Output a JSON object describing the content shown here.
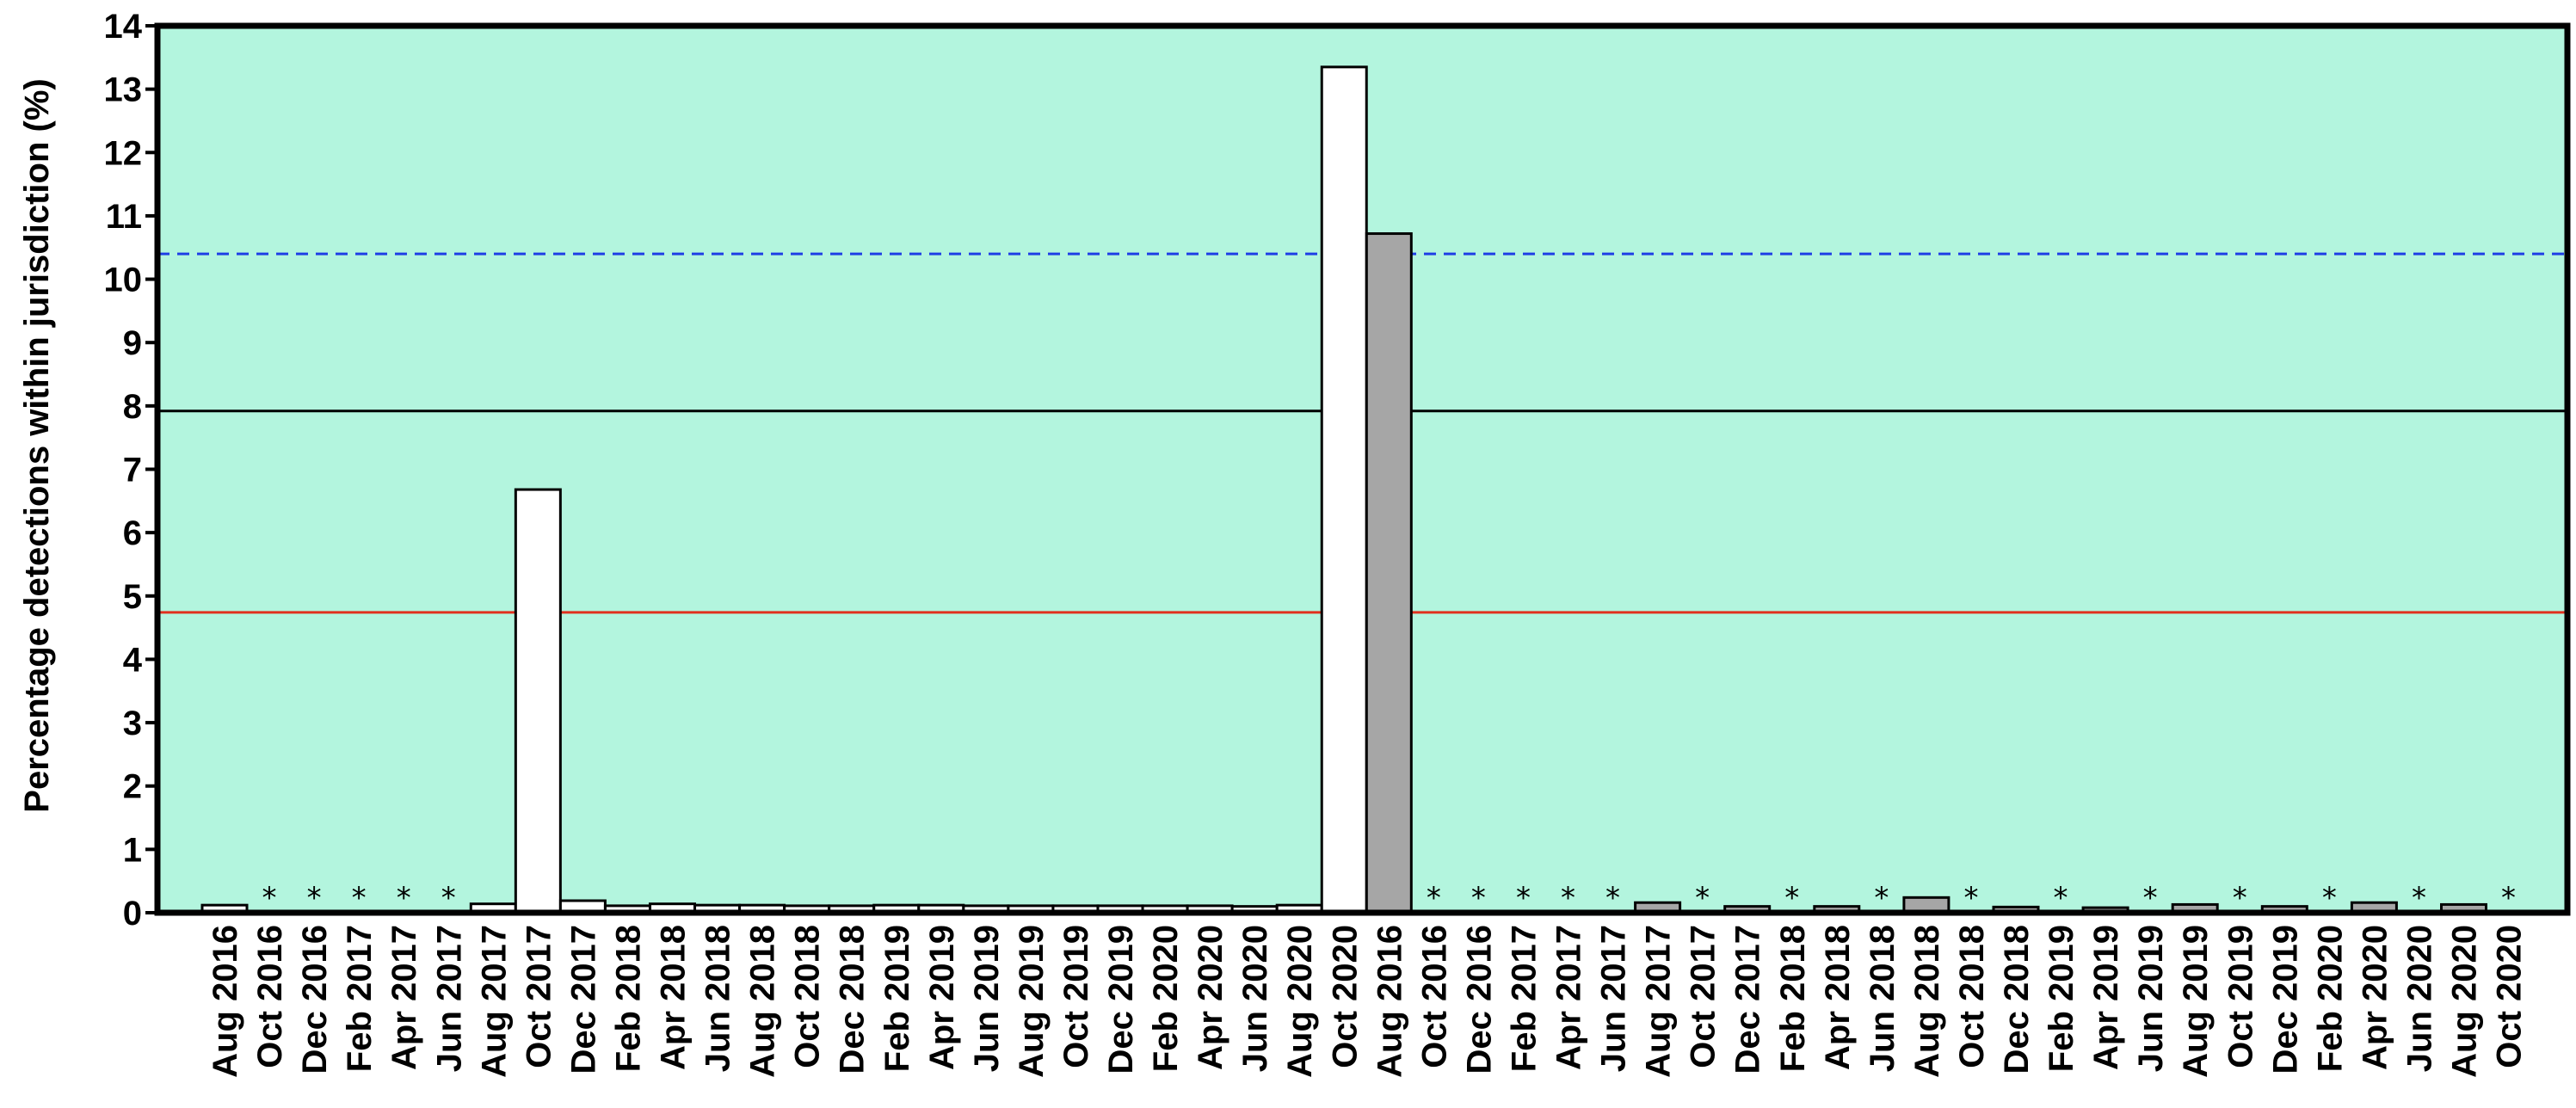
{
  "chart_data": {
    "type": "bar",
    "title": "",
    "xlabel": "",
    "ylabel": "Percentage detections  within jurisdiction (%)",
    "ylim": [
      0,
      14
    ],
    "yticks": [
      "0",
      "1",
      "2",
      "3",
      "4",
      "5",
      "6",
      "7",
      "8",
      "9",
      "10",
      "11",
      "12",
      "13",
      "14"
    ],
    "grid": false,
    "plot_background": "#b3f5de",
    "missing_marker": "*",
    "series": [
      {
        "color": "#ffffff",
        "bars": [
          {
            "label": "Aug 2016",
            "value": 0.12
          },
          {
            "label": "Oct 2016",
            "value": null
          },
          {
            "label": "Dec 2016",
            "value": null
          },
          {
            "label": "Feb 2017",
            "value": null
          },
          {
            "label": "Apr 2017",
            "value": null
          },
          {
            "label": "Jun 2017",
            "value": null
          },
          {
            "label": "Aug 2017",
            "value": 0.14
          },
          {
            "label": "Oct 2017",
            "value": 6.68
          },
          {
            "label": "Dec 2017",
            "value": 0.19
          },
          {
            "label": "Feb 2018",
            "value": 0.11
          },
          {
            "label": "Apr 2018",
            "value": 0.14
          },
          {
            "label": "Jun 2018",
            "value": 0.12
          },
          {
            "label": "Aug 2018",
            "value": 0.12
          },
          {
            "label": "Oct 2018",
            "value": 0.11
          },
          {
            "label": "Dec 2018",
            "value": 0.11
          },
          {
            "label": "Feb 2019",
            "value": 0.12
          },
          {
            "label": "Apr 2019",
            "value": 0.12
          },
          {
            "label": "Jun 2019",
            "value": 0.11
          },
          {
            "label": "Aug 2019",
            "value": 0.11
          },
          {
            "label": "Oct 2019",
            "value": 0.11
          },
          {
            "label": "Dec 2019",
            "value": 0.11
          },
          {
            "label": "Feb 2020",
            "value": 0.11
          },
          {
            "label": "Apr 2020",
            "value": 0.11
          },
          {
            "label": "Jun 2020",
            "value": 0.1
          },
          {
            "label": "Aug 2020",
            "value": 0.12
          },
          {
            "label": "Oct 2020",
            "value": 13.35
          }
        ]
      },
      {
        "color": "#a6a6a6",
        "bars": [
          {
            "label": "Aug 2016",
            "value": 10.72
          },
          {
            "label": "Oct 2016",
            "value": null
          },
          {
            "label": "Dec 2016",
            "value": null
          },
          {
            "label": "Feb 2017",
            "value": null
          },
          {
            "label": "Apr 2017",
            "value": null
          },
          {
            "label": "Jun 2017",
            "value": null
          },
          {
            "label": "Aug 2017",
            "value": 0.16
          },
          {
            "label": "Oct 2017",
            "value": null
          },
          {
            "label": "Dec 2017",
            "value": 0.1
          },
          {
            "label": "Feb 2018",
            "value": null
          },
          {
            "label": "Apr 2018",
            "value": 0.1
          },
          {
            "label": "Jun 2018",
            "value": null
          },
          {
            "label": "Aug 2018",
            "value": 0.24
          },
          {
            "label": "Oct 2018",
            "value": null
          },
          {
            "label": "Dec 2018",
            "value": 0.09
          },
          {
            "label": "Feb 2019",
            "value": null
          },
          {
            "label": "Apr 2019",
            "value": 0.08
          },
          {
            "label": "Jun 2019",
            "value": null
          },
          {
            "label": "Aug 2019",
            "value": 0.13
          },
          {
            "label": "Oct 2019",
            "value": null
          },
          {
            "label": "Dec 2019",
            "value": 0.1
          },
          {
            "label": "Feb 2020",
            "value": null
          },
          {
            "label": "Apr 2020",
            "value": 0.16
          },
          {
            "label": "Jun 2020",
            "value": null
          },
          {
            "label": "Aug 2020",
            "value": 0.13
          },
          {
            "label": "Oct 2020",
            "value": null
          }
        ]
      }
    ],
    "reference_lines": [
      {
        "value": 10.4,
        "color": "#1f3ee6",
        "style": "dashed"
      },
      {
        "value": 7.92,
        "color": "#000000",
        "style": "solid"
      },
      {
        "value": 4.74,
        "color": "#e0301e",
        "style": "solid"
      }
    ]
  }
}
